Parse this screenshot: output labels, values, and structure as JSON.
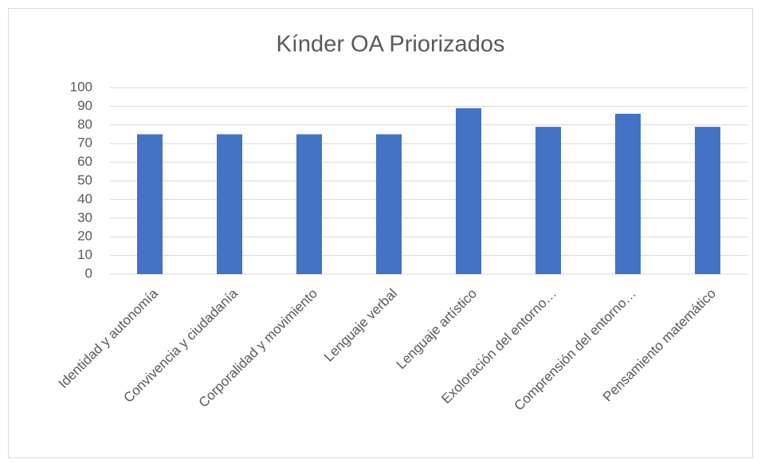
{
  "chart_data": {
    "type": "bar",
    "title": "Kínder OA Priorizados",
    "categories": [
      "Identidad y autonomía",
      "Convivencia y ciudadanía",
      "Corporalidad y movimiento",
      "Lenguaje verbal",
      "Lenguaje artístico",
      "Exoloración del entorno…",
      "Comprensión del entorno…",
      "Pensamiento matemático"
    ],
    "values": [
      75,
      75,
      75,
      75,
      89,
      79,
      86,
      79
    ],
    "color": "#4472c4",
    "ylim": [
      0,
      100
    ],
    "yticks": [
      0,
      10,
      20,
      30,
      40,
      50,
      60,
      70,
      80,
      90,
      100
    ],
    "grid": true
  }
}
